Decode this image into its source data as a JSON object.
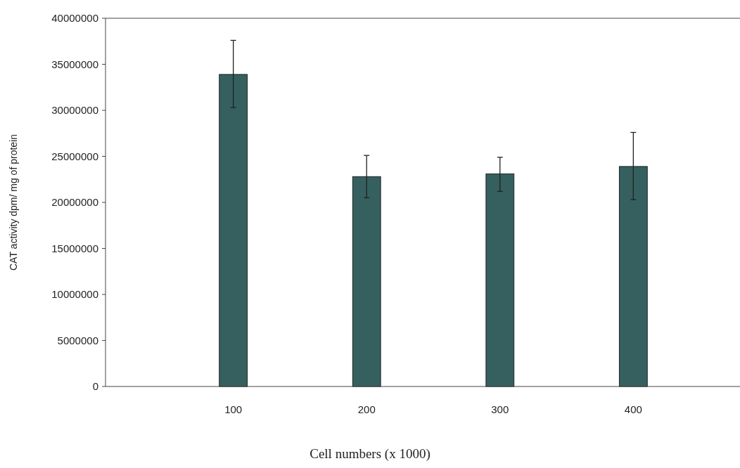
{
  "chart_data": {
    "type": "bar",
    "xlabel": "Cell numbers (x 1000)",
    "ylabel": "CAT activity dpm/ mg of protein",
    "categories": [
      "100",
      "200",
      "300",
      "400"
    ],
    "values": [
      33900000,
      22800000,
      23100000,
      23900000
    ],
    "errors": [
      [
        30300000,
        37600000
      ],
      [
        20500000,
        25100000
      ],
      [
        21200000,
        24900000
      ],
      [
        20300000,
        27600000
      ]
    ],
    "color": "#35605f",
    "ylim": [
      0,
      40000000
    ],
    "yticks": [
      0,
      5000000,
      10000000,
      15000000,
      20000000,
      25000000,
      30000000,
      35000000,
      40000000
    ],
    "grid": false
  }
}
